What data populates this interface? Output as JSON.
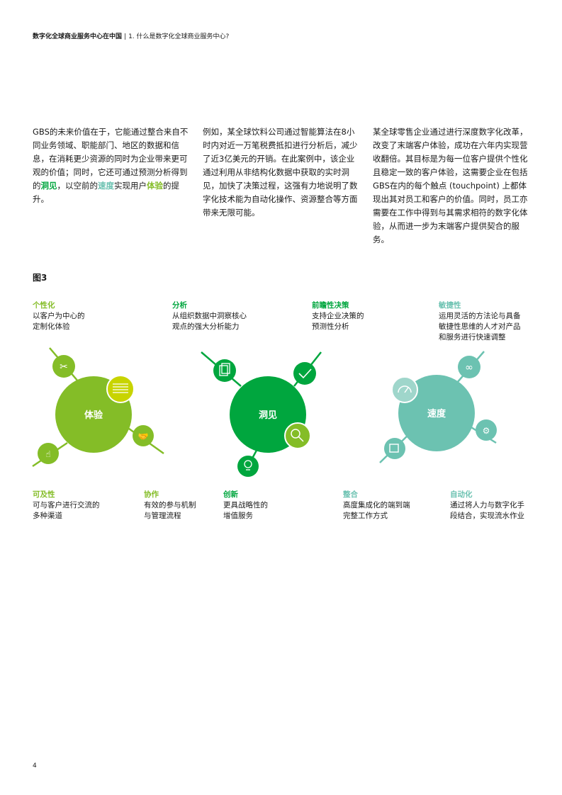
{
  "header": {
    "doc_title": "数字化全球商业服务中心在中国",
    "separator": "|",
    "section": "1. 什么是数字化全球商业服务中心?"
  },
  "paragraphs": {
    "p1": {
      "a": "GBS的未来价值在于，它能通过整合来自不同业务领域、职能部门、地区的数据和信息，在消耗更少资源的同时为企业带来更可观的价值；同时，它还可通过预测分析得到的",
      "h1": "洞见",
      "b": "，以空前的",
      "h2": "速度",
      "c": "实现用户",
      "h3": "体验",
      "d": "的提升。"
    },
    "p2": "例如，某全球饮料公司通过智能算法在8小时内对近一万笔税费抵扣进行分析后，减少了近3亿美元的开销。在此案例中，该企业通过利用从非结构化数据中获取的实时洞见，加快了决策过程，这强有力地说明了数字化技术能为自动化操作、资源整合等方面带来无限可能。",
    "p3": "某全球零售企业通过进行深度数字化改革，改变了末端客户体验，成功在六年内实现营收翻倍。其目标是为每一位客户提供个性化且稳定一致的客户体验，这需要企业在包括GBS在内的每个触点 (touchpoint) 上都体现出其对员工和客户的价值。同时，员工亦需要在工作中得到与其需求相符的数字化体验，从而进一步为末端客户提供契合的服务。"
  },
  "figure": {
    "label": "图3",
    "colors": {
      "experience": "#84bd27",
      "insight": "#00a63e",
      "speed": "#6cc2b1",
      "highlight_yellow": "#c8d400"
    },
    "hubs": {
      "experience": "体验",
      "insight": "洞见",
      "speed": "速度"
    },
    "top_labels": [
      {
        "title": "个性化",
        "desc1": "以客户为中心的",
        "desc2": "定制化体验"
      },
      {
        "title": "分析",
        "desc1": "从组织数据中洞察核心",
        "desc2": "观点的强大分析能力"
      },
      {
        "title": "前瞻性决策",
        "desc1": "支持企业决策的",
        "desc2": "预测性分析"
      },
      {
        "title": "敏捷性",
        "desc1": "运用灵活的方法论与具备",
        "desc2": "敏捷性思维的人才对产品",
        "desc3": "和服务进行快速调整"
      }
    ],
    "bottom_labels": [
      {
        "title": "可及性",
        "desc1": "可与客户进行交流的",
        "desc2": "多种渠道"
      },
      {
        "title": "协作",
        "desc1": "有效的参与机制",
        "desc2": "与管理流程"
      },
      {
        "title": "创新",
        "desc1": "更具战略性的",
        "desc2": "增值服务"
      },
      {
        "title": "整合",
        "desc1": "高度集成化的端到端",
        "desc2": "完整工作方式"
      },
      {
        "title": "自动化",
        "desc1": "通过将人力与数字化手",
        "desc2": "段结合，实现流水作业"
      }
    ]
  },
  "page_number": "4"
}
